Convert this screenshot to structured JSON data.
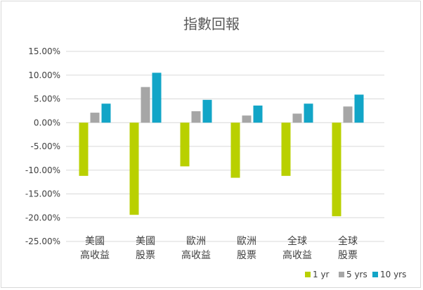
{
  "chart_data": {
    "type": "bar",
    "title": "指數回報",
    "categories": [
      [
        "美國",
        "高收益"
      ],
      [
        "美國",
        "股票"
      ],
      [
        "歐洲",
        "高收益"
      ],
      [
        "歐洲",
        "股票"
      ],
      [
        "全球",
        "高收益"
      ],
      [
        "全球",
        "股票"
      ]
    ],
    "series": [
      {
        "name": "1 yr",
        "color": "#b9d000",
        "values": [
          -11.2,
          -19.4,
          -9.2,
          -11.6,
          -11.2,
          -19.7
        ]
      },
      {
        "name": "5 yrs",
        "color": "#a6a6a6",
        "values": [
          2.1,
          7.5,
          2.4,
          1.5,
          1.9,
          3.4
        ]
      },
      {
        "name": "10 yrs",
        "color": "#12a5c7",
        "values": [
          4.0,
          10.5,
          4.8,
          3.6,
          4.0,
          5.9
        ]
      }
    ],
    "yticks": [
      "15.00%",
      "10.00%",
      "5.00%",
      "0.00%",
      "-5.00%",
      "-10.00%",
      "-15.00%",
      "-20.00%",
      "-25.00%"
    ],
    "ylim": [
      -25,
      15
    ],
    "grid": true,
    "legend_position": "bottom-right"
  }
}
